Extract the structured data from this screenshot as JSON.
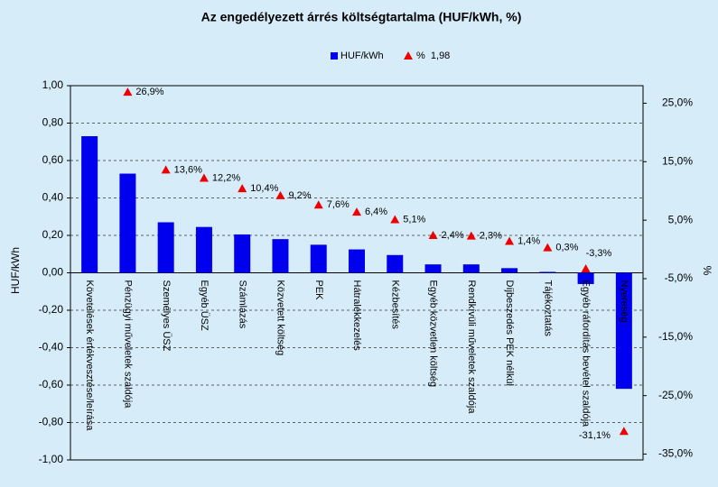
{
  "chart_data": {
    "type": "bar_line",
    "title": "Az engedélyezett árrés költségtartalma (HUF/kWh, %)",
    "y_label": "HUF/kWh",
    "y2_label": "%",
    "categories": [
      "Követelések értékvesztése/leírása",
      "Pénzügyi műveletek szaldója",
      "Személyes ÜSZ",
      "Egyéb ÜSZ",
      "Számlázás",
      "Közvetett költség",
      "PEK",
      "Hátralékkezelés",
      "Kézbesítés",
      "Egyéb közvetlen költség",
      "Rendkívüli műveletek szaldója",
      "Díjbeszedés PEK nélkül",
      "Tájékoztatás",
      "Egyéb ráfordítás bevétel szaldója",
      "Nyereség"
    ],
    "series": [
      {
        "name": "HUF/kWh",
        "color": "#0000ee",
        "values": [
          0.73,
          0.53,
          0.27,
          0.245,
          0.205,
          0.18,
          0.15,
          0.125,
          0.095,
          0.045,
          0.045,
          0.025,
          0.005,
          -0.06,
          -0.62
        ]
      },
      {
        "name": "%  1,98",
        "color": "#ee0000",
        "axis": "y2",
        "values": [
          null,
          26.9,
          13.6,
          12.2,
          10.4,
          9.2,
          7.6,
          6.4,
          5.1,
          2.4,
          2.3,
          1.4,
          0.3,
          -3.3,
          -31.1
        ],
        "value_labels": [
          null,
          "26,9%",
          "13,6%",
          "12,2%",
          "10,4%",
          "9,2%",
          "7,6%",
          "6,4%",
          "5,1%",
          "2,4%",
          "2,3%",
          "1,4%",
          "0,3%",
          "-3,3%",
          "-31,1%"
        ]
      }
    ],
    "ylim": [
      -1,
      1
    ],
    "yticks": [
      {
        "value": -1,
        "label": "-1,00"
      },
      {
        "value": -0.8,
        "label": "-0,80"
      },
      {
        "value": -0.6,
        "label": "-0,60"
      },
      {
        "value": -0.4,
        "label": "-0,40"
      },
      {
        "value": -0.2,
        "label": "-0,20"
      },
      {
        "value": 0,
        "label": "0,00"
      },
      {
        "value": 0.2,
        "label": "0,20"
      },
      {
        "value": 0.4,
        "label": "0,40"
      },
      {
        "value": 0.6,
        "label": "0,60"
      },
      {
        "value": 0.8,
        "label": "0,80"
      },
      {
        "value": 1,
        "label": "1,00"
      }
    ],
    "y2lim": [
      -36,
      28
    ],
    "y2ticks": [
      {
        "value": -35,
        "label": "-35,0%"
      },
      {
        "value": -25,
        "label": "-25,0%"
      },
      {
        "value": -15,
        "label": "-15,0%"
      },
      {
        "value": -5,
        "label": "-5,0%"
      },
      {
        "value": 5,
        "label": "5,0%"
      },
      {
        "value": 15,
        "label": "15,0%"
      },
      {
        "value": 25,
        "label": "25,0%"
      }
    ],
    "grid": true
  }
}
